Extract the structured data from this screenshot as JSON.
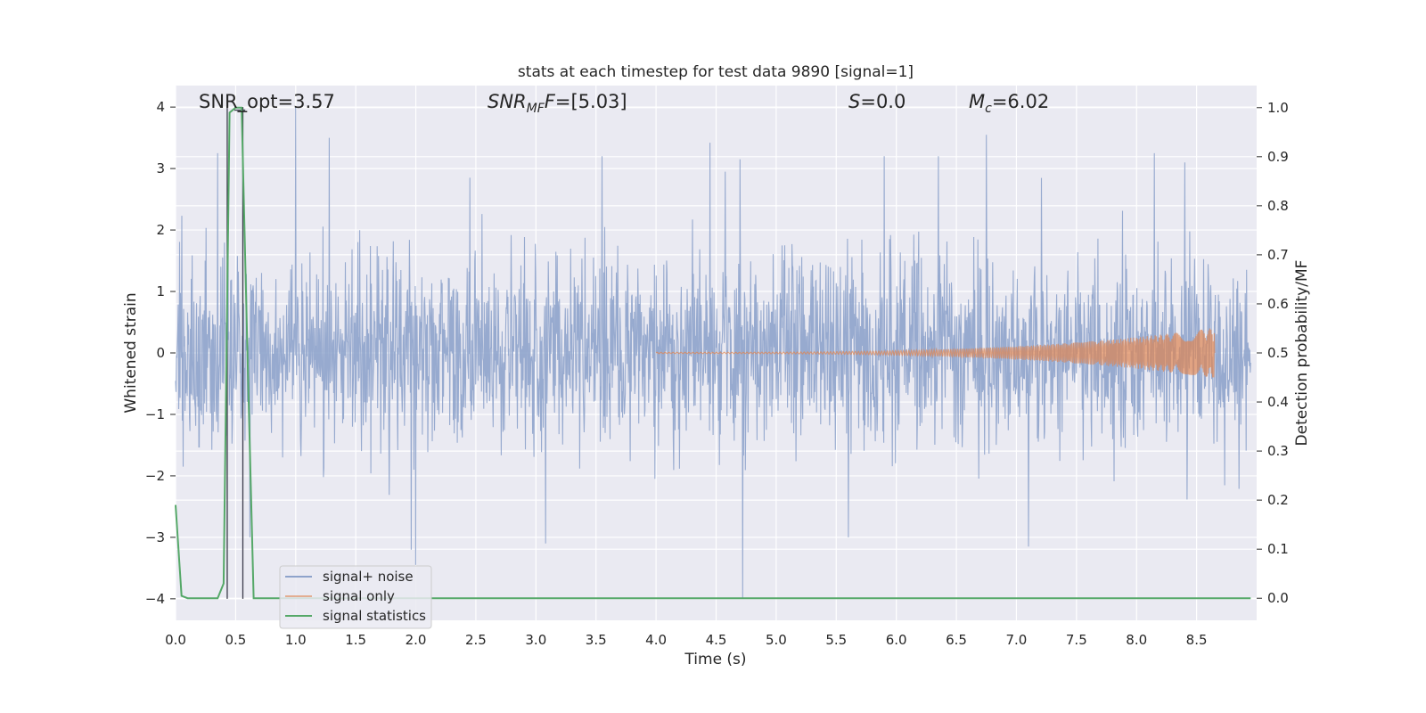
{
  "chart_data": {
    "type": "line",
    "title": "stats at each timestep for test data 9890 [signal=1]",
    "xlabel": "Time (s)",
    "ylabel": "Whitened strain",
    "y2label": "Detection probability/MF",
    "xlim": [
      0.0,
      9.0
    ],
    "ylim": [
      -4.35,
      4.35
    ],
    "y2lim": [
      -0.045,
      1.045
    ],
    "x_ticks": [
      "0.0",
      "0.5",
      "1.0",
      "1.5",
      "2.0",
      "2.5",
      "3.0",
      "3.5",
      "4.0",
      "4.5",
      "5.0",
      "5.5",
      "6.0",
      "6.5",
      "7.0",
      "7.5",
      "8.0",
      "8.5"
    ],
    "y_ticks": [
      "-4",
      "-3",
      "-2",
      "-1",
      "0",
      "1",
      "2",
      "3",
      "4"
    ],
    "y2_ticks": [
      "0.0",
      "0.1",
      "0.2",
      "0.3",
      "0.4",
      "0.5",
      "0.6",
      "0.7",
      "0.8",
      "0.9",
      "1.0"
    ],
    "grid": true,
    "legend_position": "lower-left",
    "annotations": {
      "snr_opt": "SNR_opt=3.57",
      "snr_mf_italic": "SNR",
      "snr_mf_sub": "MF",
      "snr_mf_rest": "=[5.03]",
      "s_italic": "S",
      "s_rest": "=0.0",
      "mc_italic": "M",
      "mc_sub": "c",
      "mc_rest": "=6.02"
    },
    "series": [
      {
        "name": "signal+ noise",
        "color": "#8ea3cb",
        "description_kind": "noise",
        "spikes": [
          [
            1.0,
            4.0
          ],
          [
            1.28,
            3.5
          ],
          [
            4.72,
            -4.0
          ],
          [
            1.96,
            -3.2
          ],
          [
            6.75,
            3.55
          ],
          [
            4.45,
            3.42
          ],
          [
            7.1,
            -3.15
          ],
          [
            3.08,
            -3.1
          ],
          [
            0.35,
            3.25
          ],
          [
            8.15,
            3.25
          ],
          [
            5.6,
            -3.0
          ],
          [
            3.55,
            3.2
          ],
          [
            4.7,
            3.15
          ],
          [
            5.9,
            3.2
          ],
          [
            6.35,
            3.2
          ],
          [
            0.62,
            -3.0
          ],
          [
            2.45,
            2.85
          ],
          [
            8.4,
            3.1
          ],
          [
            2.0,
            -3.45
          ]
        ]
      },
      {
        "name": "signal only",
        "color": "#dd8452",
        "chirp_start": 4.0,
        "chirp_end": 8.65,
        "peak_amplitude": 0.4
      },
      {
        "name": "signal statistics",
        "color": "#55a868",
        "axis": "right",
        "x": [
          0.0,
          0.05,
          0.1,
          0.15,
          0.2,
          0.25,
          0.3,
          0.35,
          0.4,
          0.45,
          0.5,
          0.55,
          0.6,
          0.65,
          0.7,
          0.75,
          0.8,
          0.9,
          1.0,
          2.0,
          3.0,
          4.0,
          5.0,
          6.0,
          7.0,
          8.0,
          8.95
        ],
        "values": [
          0.19,
          0.005,
          0.0,
          0.0,
          0.0,
          0.0,
          0.0,
          0.0,
          0.03,
          0.99,
          1.0,
          1.0,
          0.48,
          0.0,
          0.0,
          0.0,
          0.0,
          0.0,
          0.0,
          0.0,
          0.0,
          0.0,
          0.0,
          0.0,
          0.0,
          0.0,
          0.0
        ]
      }
    ],
    "vertical_markers_x": [
      0.43,
      0.56
    ],
    "horizontal_marker": {
      "x": [
        0.49,
        0.58
      ],
      "y": 3.95
    }
  }
}
